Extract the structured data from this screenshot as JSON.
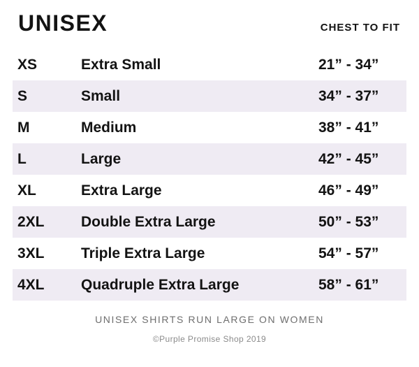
{
  "header": {
    "title": "UNISEX",
    "column_label": "CHEST TO FIT"
  },
  "size_table": {
    "rows": [
      {
        "code": "XS",
        "name": "Extra Small",
        "range": "21” - 34”"
      },
      {
        "code": "S",
        "name": "Small",
        "range": "34” - 37”"
      },
      {
        "code": "M",
        "name": "Medium",
        "range": "38” - 41”"
      },
      {
        "code": "L",
        "name": "Large",
        "range": "42” - 45”"
      },
      {
        "code": "XL",
        "name": "Extra Large",
        "range": "46” - 49”"
      },
      {
        "code": "2XL",
        "name": "Double Extra Large",
        "range": "50” - 53”"
      },
      {
        "code": "3XL",
        "name": "Triple Extra Large",
        "range": "54” - 57”"
      },
      {
        "code": "4XL",
        "name": "Quadruple Extra Large",
        "range": "58” - 61”"
      }
    ]
  },
  "footer": {
    "note": "UNISEX SHIRTS RUN LARGE ON WOMEN",
    "copyright": "©Purple Promise Shop 2019"
  },
  "colors": {
    "row_shade": "#efebf3",
    "text": "#131313",
    "note_gray": "#6e6e6e",
    "copyright_gray": "#8b8b8b"
  }
}
